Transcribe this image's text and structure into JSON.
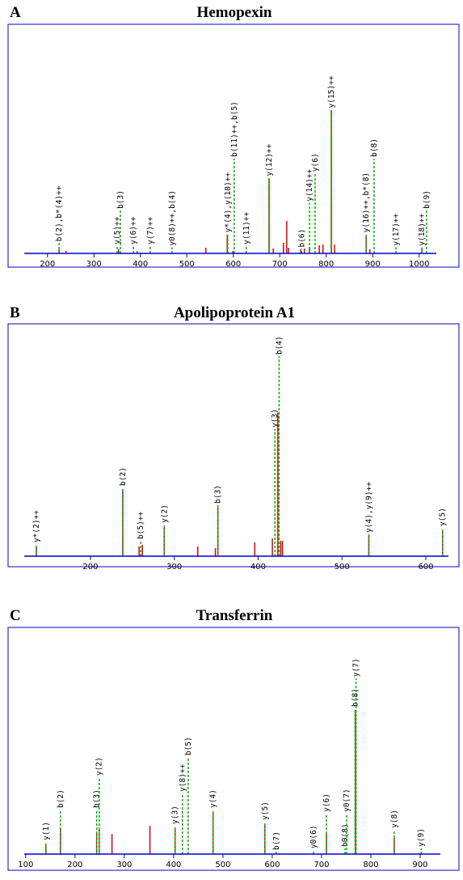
{
  "chart_data": [
    {
      "type": "spectrum",
      "panel": "A",
      "title": "Hemopexin",
      "x": [
        225,
        240,
        353,
        393,
        541,
        587,
        599,
        677,
        686,
        708,
        715,
        719,
        745,
        753,
        764,
        785,
        793,
        811,
        818,
        886,
        894,
        1006
      ],
      "values": [
        2.7,
        1.6,
        2.7,
        1.6,
        3.8,
        12.6,
        1.6,
        50.3,
        3.3,
        7.1,
        21.9,
        3.8,
        2.7,
        3.3,
        4.4,
        5.5,
        6,
        96.2,
        6,
        11.5,
        2.7,
        3.8
      ],
      "annotations": [
        {
          "label": "b(2),b*(4)++",
          "x": 225,
          "y": 7
        },
        {
          "label": "y(5)++",
          "x": 350,
          "y": 5
        },
        {
          "label": "b(3)",
          "x": 357,
          "y": 29
        },
        {
          "label": "y(6)++",
          "x": 385,
          "y": 5
        },
        {
          "label": "y(7)++",
          "x": 421,
          "y": 5
        },
        {
          "label": "y0(8)++,b(4)",
          "x": 468,
          "y": 4
        },
        {
          "label": "y*(4),y(10)++",
          "x": 588,
          "y": 13
        },
        {
          "label": "b(11)++,b(5)",
          "x": 602,
          "y": 64
        },
        {
          "label": "y(11)++",
          "x": 628,
          "y": 5
        },
        {
          "label": "y(12)++",
          "x": 677,
          "y": 51
        },
        {
          "label": "b(6)",
          "x": 747,
          "y": 3
        },
        {
          "label": "y(14)++",
          "x": 764,
          "y": 34
        },
        {
          "label": "y(6)",
          "x": 776,
          "y": 54
        },
        {
          "label": "y(15)++",
          "x": 811,
          "y": 97
        },
        {
          "label": "y(16)++,b*(8)",
          "x": 886,
          "y": 13
        },
        {
          "label": "b(8)",
          "x": 903,
          "y": 64
        },
        {
          "label": "y(17)++",
          "x": 950,
          "y": 4
        },
        {
          "label": "y(18)++",
          "x": 1006,
          "y": 4
        },
        {
          "label": "b(9)",
          "x": 1016,
          "y": 29
        }
      ],
      "xlim": [
        150,
        1037
      ],
      "xticks": [
        200,
        300,
        400,
        500,
        600,
        700,
        800,
        900,
        1000
      ],
      "ylim": [
        0,
        100
      ],
      "color": "#e00000",
      "annotation_color": "#00b000",
      "axis_color": "#0000cc"
    },
    {
      "type": "spectrum",
      "panel": "B",
      "title": "Apolipoprotein A1",
      "x": [
        135.5,
        238.5,
        258,
        262,
        288,
        328,
        349,
        352,
        396,
        417,
        423.5,
        427,
        429,
        532,
        620
      ],
      "values": [
        4.5,
        30.7,
        4.5,
        5.2,
        13.1,
        4.5,
        3.7,
        22.5,
        6.4,
        8.2,
        66.3,
        7.1,
        7.1,
        9.4,
        12
      ],
      "annotations": [
        {
          "label": "y*(2)++",
          "x": 135.5,
          "y": 5.6
        },
        {
          "label": "b(2)",
          "x": 238.5,
          "y": 31.8
        },
        {
          "label": "b(5)++",
          "x": 260,
          "y": 7.1
        },
        {
          "label": "y(2)",
          "x": 288,
          "y": 14.6
        },
        {
          "label": "b(3)",
          "x": 352,
          "y": 23.6
        },
        {
          "label": "y(3)",
          "x": 420,
          "y": 58.8
        },
        {
          "label": "b(4)",
          "x": 425,
          "y": 92.5
        },
        {
          "label": "y(4),y(9)++",
          "x": 532,
          "y": 10.1
        },
        {
          "label": "y(5)",
          "x": 620,
          "y": 13.1
        }
      ],
      "xlim": [
        121,
        627
      ],
      "xticks": [
        200,
        300,
        400,
        500,
        600
      ],
      "ylim": [
        0,
        100
      ],
      "color": "#e00000",
      "annotation_color": "#00b000",
      "axis_color": "#0000cc"
    },
    {
      "type": "spectrum",
      "panel": "C",
      "title": "Transferrin",
      "x": [
        141,
        170.5,
        244,
        249,
        275,
        352,
        403,
        480,
        585,
        710,
        769,
        847.5
      ],
      "values": [
        4.3,
        14,
        11.5,
        12.8,
        10.6,
        14.9,
        13.6,
        21.3,
        15.7,
        10.6,
        75.3,
        8.5
      ],
      "annotations": [
        {
          "label": "y(1)",
          "x": 141,
          "y": 6.4
        },
        {
          "label": "b(2)",
          "x": 170.5,
          "y": 23.4
        },
        {
          "label": "b(3)",
          "x": 244,
          "y": 23.4
        },
        {
          "label": "y(2)",
          "x": 249,
          "y": 40.4
        },
        {
          "label": "y(3)",
          "x": 403,
          "y": 14.9
        },
        {
          "label": "y(8)++",
          "x": 418,
          "y": 31.9
        },
        {
          "label": "b(5)",
          "x": 429.5,
          "y": 51
        },
        {
          "label": "y(4)",
          "x": 480,
          "y": 23.4
        },
        {
          "label": "y(5)",
          "x": 585,
          "y": 17
        },
        {
          "label": "b(7)",
          "x": 608,
          "y": 1.3
        },
        {
          "label": "y0(6)",
          "x": 683.6,
          "y": 2.1
        },
        {
          "label": "y(6)",
          "x": 710,
          "y": 21.3
        },
        {
          "label": "b0(8)",
          "x": 747.5,
          "y": 3
        },
        {
          "label": "y0(7)",
          "x": 751,
          "y": 21.3
        },
        {
          "label": "b(8)",
          "x": 768,
          "y": 76.6
        },
        {
          "label": "y(7)",
          "x": 770,
          "y": 92.3
        },
        {
          "label": "y(8)",
          "x": 847.5,
          "y": 12.8
        },
        {
          "label": "y(9)",
          "x": 902,
          "y": 3
        }
      ],
      "xlim": [
        97,
        941
      ],
      "xticks": [
        100,
        200,
        300,
        400,
        500,
        600,
        700,
        800,
        900
      ],
      "ylim": [
        0,
        100
      ],
      "color": "#e00000",
      "annotation_color": "#00b000",
      "axis_color": "#0000cc"
    }
  ]
}
